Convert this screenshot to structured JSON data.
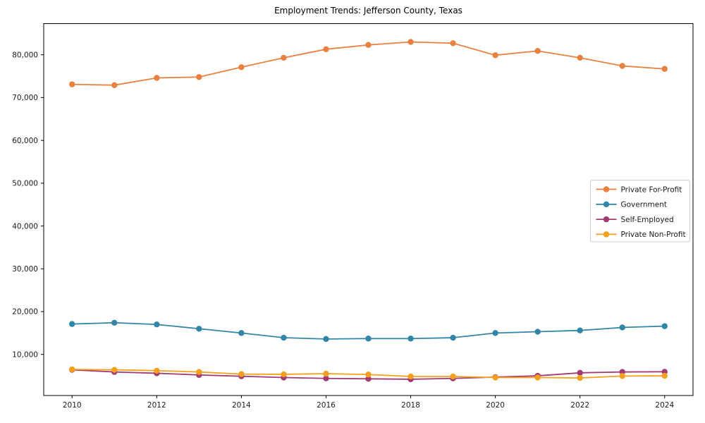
{
  "chart_data": {
    "type": "line",
    "title": "Employment Trends: Jefferson County, Texas",
    "xlabel": "",
    "ylabel": "",
    "x": [
      2010,
      2011,
      2012,
      2013,
      2014,
      2015,
      2016,
      2017,
      2018,
      2019,
      2020,
      2021,
      2022,
      2023,
      2024
    ],
    "series": [
      {
        "name": "Private For-Profit",
        "color": "#E8813F",
        "values": [
          73100,
          72900,
          74600,
          74800,
          77100,
          79300,
          81300,
          82300,
          83000,
          82700,
          79900,
          80900,
          79300,
          77400,
          76700
        ]
      },
      {
        "name": "Government",
        "color": "#3186A8",
        "values": [
          17100,
          17400,
          17000,
          16000,
          15000,
          13900,
          13600,
          13700,
          13700,
          13900,
          15000,
          15300,
          15600,
          16300,
          16600
        ]
      },
      {
        "name": "Self-Employed",
        "color": "#A23B72",
        "values": [
          6400,
          5900,
          5600,
          5200,
          4900,
          4600,
          4400,
          4300,
          4200,
          4400,
          4700,
          5000,
          5700,
          5900,
          5950
        ]
      },
      {
        "name": "Private Non-Profit",
        "color": "#F5A01D",
        "values": [
          6500,
          6400,
          6200,
          5900,
          5400,
          5350,
          5500,
          5300,
          4850,
          4850,
          4600,
          4600,
          4500,
          4950,
          5000
        ]
      }
    ],
    "xlim": [
      2009.33,
      2024.67
    ],
    "ylim": [
      400,
      87280
    ],
    "xticks": [
      2010,
      2012,
      2014,
      2016,
      2018,
      2020,
      2022,
      2024
    ],
    "yticks": [
      10000,
      20000,
      30000,
      40000,
      50000,
      60000,
      70000,
      80000
    ],
    "grid": false,
    "legend": {
      "position": "center-right",
      "background": "#ffffff",
      "border_color": "#cccccc",
      "entries": [
        "Private For-Profit",
        "Government",
        "Self-Employed",
        "Private Non-Profit"
      ]
    },
    "axis_color": "#000000",
    "tick_label_color": "#1a1a1a",
    "marker": "circle",
    "marker_radius": 4.2,
    "line_width": 1.8
  }
}
